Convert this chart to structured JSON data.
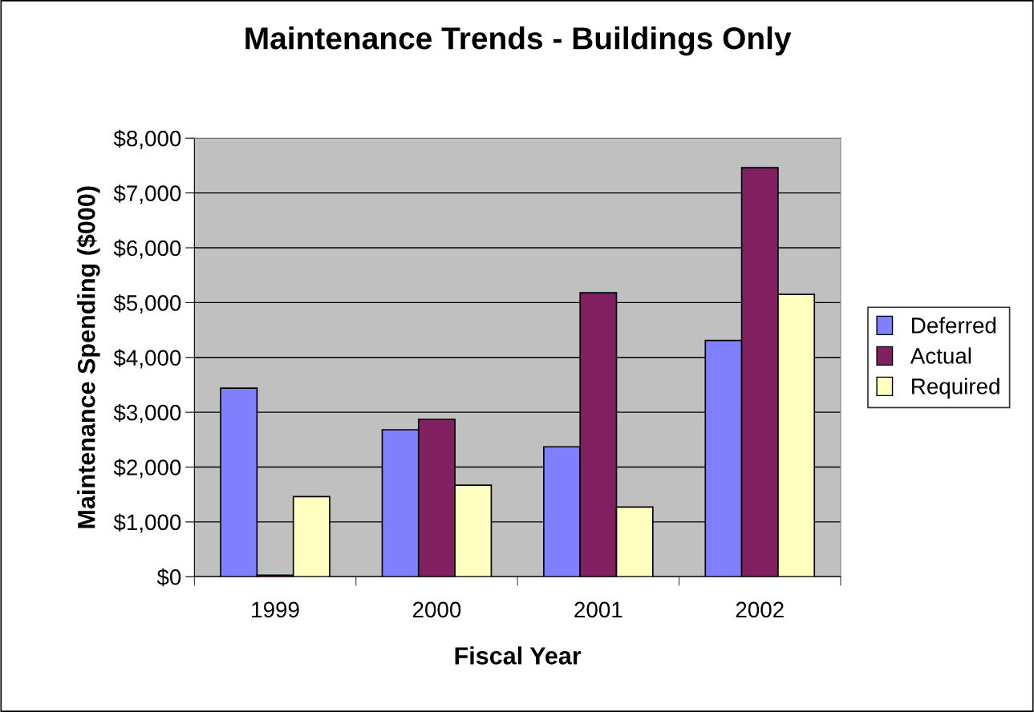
{
  "chart_data": {
    "type": "bar",
    "title": "Maintenance Trends - Buildings Only",
    "xlabel": "Fiscal Year",
    "ylabel": "Maintenance Spending ($000)",
    "categories": [
      "1999",
      "2000",
      "2001",
      "2002"
    ],
    "series": [
      {
        "name": "Deferred",
        "color": "#8080ff",
        "values": [
          3440,
          2680,
          2370,
          4310
        ]
      },
      {
        "name": "Actual",
        "color": "#802060",
        "values": [
          30,
          2870,
          5180,
          7460
        ]
      },
      {
        "name": "Required",
        "color": "#ffffc0",
        "values": [
          1460,
          1670,
          1270,
          5150
        ]
      }
    ],
    "ylim": [
      0,
      8000
    ],
    "yticks": [
      {
        "value": 0,
        "label": "$0"
      },
      {
        "value": 1000,
        "label": "$1,000"
      },
      {
        "value": 2000,
        "label": "$2,000"
      },
      {
        "value": 3000,
        "label": "$3,000"
      },
      {
        "value": 4000,
        "label": "$4,000"
      },
      {
        "value": 5000,
        "label": "$5,000"
      },
      {
        "value": 6000,
        "label": "$6,000"
      },
      {
        "value": 7000,
        "label": "$7,000"
      },
      {
        "value": 8000,
        "label": "$8,000"
      }
    ],
    "grid": "y",
    "legend": "right"
  }
}
